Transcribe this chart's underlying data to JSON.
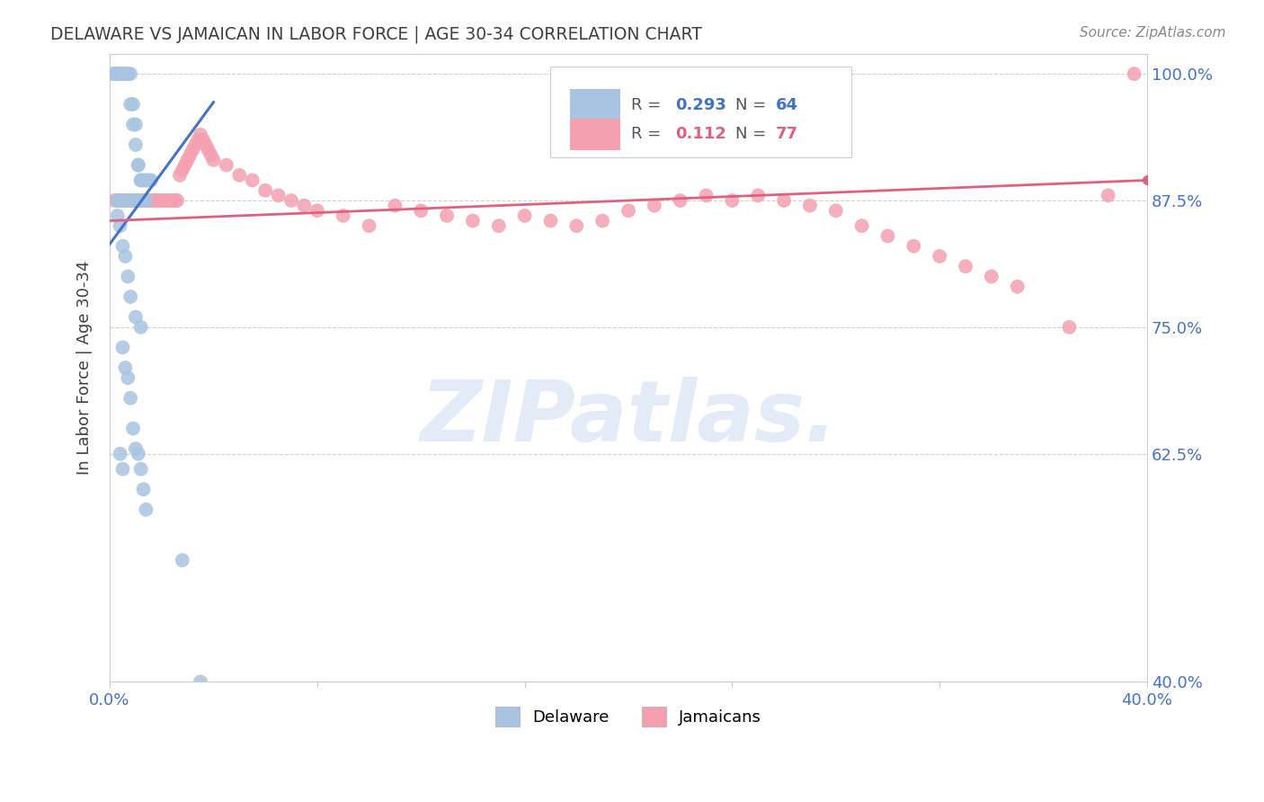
{
  "title": "DELAWARE VS JAMAICAN IN LABOR FORCE | AGE 30-34 CORRELATION CHART",
  "source": "Source: ZipAtlas.com",
  "ylabel": "In Labor Force | Age 30-34",
  "xlim": [
    0.0,
    0.4
  ],
  "ylim": [
    0.4,
    1.02
  ],
  "xticks": [
    0.0,
    0.08,
    0.16,
    0.24,
    0.32,
    0.4
  ],
  "ytick_positions": [
    0.4,
    0.625,
    0.75,
    0.875,
    1.0
  ],
  "yticklabels_right": [
    "40.0%",
    "62.5%",
    "75.0%",
    "87.5%",
    "100.0%"
  ],
  "delaware_color": "#a8c4e0",
  "jamaican_color": "#f4a0b0",
  "delaware_line_color": "#4472c4",
  "jamaican_line_color": "#e06080",
  "grid_color": "#d0d0d0",
  "title_color": "#404040",
  "axis_label_color": "#404040",
  "tick_color": "#4472c4",
  "background_color": "#ffffff",
  "delaware_x": [
    0.001,
    0.002,
    0.002,
    0.003,
    0.003,
    0.003,
    0.004,
    0.004,
    0.004,
    0.005,
    0.005,
    0.005,
    0.006,
    0.006,
    0.007,
    0.007,
    0.008,
    0.008,
    0.009,
    0.009,
    0.01,
    0.01,
    0.011,
    0.011,
    0.012,
    0.012,
    0.013,
    0.014,
    0.015,
    0.016,
    0.003,
    0.004,
    0.005,
    0.006,
    0.007,
    0.008,
    0.009,
    0.01,
    0.011,
    0.012,
    0.013,
    0.014,
    0.003,
    0.004,
    0.005,
    0.006,
    0.007,
    0.008,
    0.01,
    0.012,
    0.005,
    0.006,
    0.007,
    0.008,
    0.009,
    0.01,
    0.011,
    0.012,
    0.013,
    0.014,
    0.004,
    0.005,
    0.028,
    0.035
  ],
  "delaware_y": [
    1.0,
    1.0,
    1.0,
    1.0,
    1.0,
    1.0,
    1.0,
    1.0,
    1.0,
    1.0,
    1.0,
    1.0,
    1.0,
    1.0,
    1.0,
    1.0,
    1.0,
    0.97,
    0.97,
    0.95,
    0.95,
    0.93,
    0.91,
    0.91,
    0.895,
    0.895,
    0.895,
    0.895,
    0.895,
    0.895,
    0.875,
    0.875,
    0.875,
    0.875,
    0.875,
    0.875,
    0.875,
    0.875,
    0.875,
    0.875,
    0.875,
    0.875,
    0.86,
    0.85,
    0.83,
    0.82,
    0.8,
    0.78,
    0.76,
    0.75,
    0.73,
    0.71,
    0.7,
    0.68,
    0.65,
    0.63,
    0.625,
    0.61,
    0.59,
    0.57,
    0.625,
    0.61,
    0.52,
    0.4
  ],
  "jamaican_x": [
    0.002,
    0.003,
    0.004,
    0.005,
    0.006,
    0.007,
    0.008,
    0.009,
    0.01,
    0.011,
    0.012,
    0.013,
    0.014,
    0.015,
    0.016,
    0.017,
    0.018,
    0.019,
    0.02,
    0.021,
    0.022,
    0.023,
    0.024,
    0.025,
    0.026,
    0.027,
    0.028,
    0.029,
    0.03,
    0.031,
    0.032,
    0.033,
    0.034,
    0.035,
    0.036,
    0.037,
    0.038,
    0.039,
    0.04,
    0.045,
    0.05,
    0.055,
    0.06,
    0.065,
    0.07,
    0.075,
    0.08,
    0.09,
    0.1,
    0.11,
    0.12,
    0.13,
    0.14,
    0.15,
    0.16,
    0.17,
    0.18,
    0.19,
    0.2,
    0.21,
    0.22,
    0.23,
    0.24,
    0.25,
    0.26,
    0.27,
    0.28,
    0.29,
    0.3,
    0.31,
    0.32,
    0.33,
    0.34,
    0.35,
    0.37,
    0.385,
    0.395
  ],
  "jamaican_y": [
    0.875,
    0.875,
    0.875,
    0.875,
    0.875,
    0.875,
    0.875,
    0.875,
    0.875,
    0.875,
    0.875,
    0.875,
    0.875,
    0.875,
    0.875,
    0.875,
    0.875,
    0.875,
    0.875,
    0.875,
    0.875,
    0.875,
    0.875,
    0.875,
    0.875,
    0.9,
    0.905,
    0.91,
    0.915,
    0.92,
    0.925,
    0.93,
    0.935,
    0.94,
    0.935,
    0.93,
    0.925,
    0.92,
    0.915,
    0.91,
    0.9,
    0.895,
    0.885,
    0.88,
    0.875,
    0.87,
    0.865,
    0.86,
    0.85,
    0.87,
    0.865,
    0.86,
    0.855,
    0.85,
    0.86,
    0.855,
    0.85,
    0.855,
    0.865,
    0.87,
    0.875,
    0.88,
    0.875,
    0.88,
    0.875,
    0.87,
    0.865,
    0.85,
    0.84,
    0.83,
    0.82,
    0.81,
    0.8,
    0.79,
    0.75,
    0.88,
    1.0
  ],
  "delaware_line_x": [
    0.0,
    0.04
  ],
  "delaware_line_y": [
    0.832,
    0.972
  ],
  "jamaican_line_x": [
    0.0,
    0.4
  ],
  "jamaican_line_y": [
    0.855,
    0.895
  ],
  "watermark": "ZIPatlas.",
  "watermark_color": "#c8d8f0"
}
